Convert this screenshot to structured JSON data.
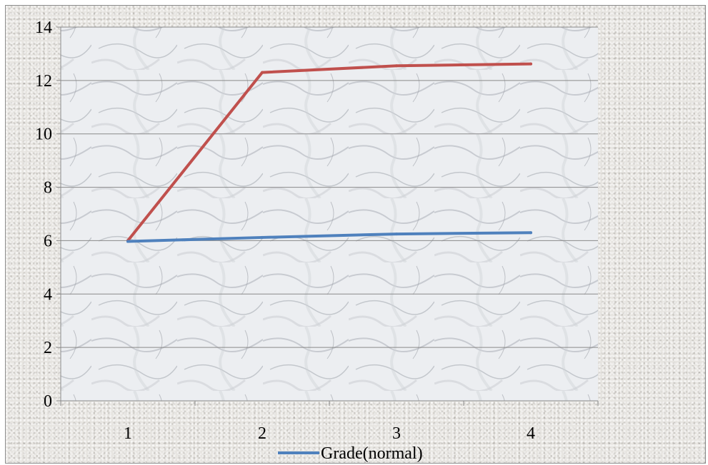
{
  "chart_data": {
    "type": "line",
    "categories": [
      "1",
      "2",
      "3",
      "4"
    ],
    "ylim": [
      0,
      14
    ],
    "yticks": [
      0,
      2,
      4,
      6,
      8,
      10,
      12,
      14
    ],
    "grid": true,
    "legend_placement": "bottom",
    "series": [
      {
        "name": "",
        "color": "#c0504d",
        "values": [
          6.0,
          12.3,
          12.55,
          12.62
        ]
      },
      {
        "name": "Grade(normal)",
        "color": "#4f81bd",
        "values": [
          5.97,
          6.12,
          6.25,
          6.3
        ]
      }
    ]
  }
}
